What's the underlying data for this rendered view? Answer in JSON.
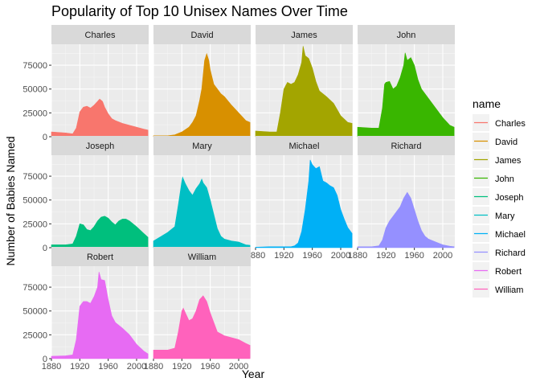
{
  "chart_data": {
    "type": "area",
    "title": "Popularity of Top 10 Unisex Names Over Time",
    "xlabel": "Year",
    "ylabel": "Number of Babies Named",
    "xlim": [
      1880,
      2017
    ],
    "ylim": [
      0,
      97000
    ],
    "x_ticks": [
      1880,
      1920,
      1960,
      2000
    ],
    "x_tick_labels": [
      "1880",
      "1920",
      "1960",
      "2000"
    ],
    "y_ticks": [
      0,
      25000,
      50000,
      75000
    ],
    "y_tick_labels": [
      "0",
      "25000",
      "50000",
      "75000"
    ],
    "grid": true,
    "facet_by": "name",
    "legend": {
      "title": "name",
      "placement": "right"
    },
    "series": [
      {
        "name": "Charles",
        "color": "#F8766D",
        "x": [
          1880,
          1900,
          1910,
          1915,
          1920,
          1925,
          1930,
          1935,
          1940,
          1945,
          1948,
          1952,
          1955,
          1960,
          1965,
          1970,
          1980,
          1990,
          2000,
          2010,
          2016
        ],
        "y": [
          5000,
          4000,
          3000,
          9000,
          26000,
          31000,
          32000,
          30000,
          33000,
          37000,
          39500,
          37000,
          31000,
          24000,
          19000,
          17000,
          14000,
          12000,
          10000,
          8000,
          7000
        ]
      },
      {
        "name": "David",
        "color": "#D89000",
        "x": [
          1880,
          1900,
          1910,
          1920,
          1930,
          1935,
          1940,
          1945,
          1948,
          1952,
          1955,
          1958,
          1960,
          1965,
          1970,
          1975,
          1980,
          1990,
          2000,
          2010,
          2016
        ],
        "y": [
          1000,
          1000,
          2000,
          5000,
          10000,
          15000,
          22000,
          38000,
          50000,
          80000,
          87000,
          80000,
          70000,
          55000,
          50000,
          45000,
          42000,
          33000,
          25000,
          17000,
          15000
        ]
      },
      {
        "name": "James",
        "color": "#A3A500",
        "x": [
          1880,
          1900,
          1910,
          1915,
          1920,
          1925,
          1930,
          1935,
          1940,
          1945,
          1947,
          1950,
          1955,
          1960,
          1965,
          1970,
          1980,
          1990,
          2000,
          2010,
          2016
        ],
        "y": [
          6000,
          5000,
          5000,
          25000,
          50000,
          57000,
          55000,
          57000,
          65000,
          78000,
          95000,
          85000,
          82000,
          72000,
          58000,
          48000,
          42000,
          35000,
          22000,
          15000,
          14000
        ]
      },
      {
        "name": "John",
        "color": "#39B600",
        "x": [
          1880,
          1900,
          1910,
          1915,
          1918,
          1920,
          1925,
          1930,
          1935,
          1940,
          1945,
          1947,
          1950,
          1955,
          1960,
          1965,
          1970,
          1980,
          1990,
          2000,
          2010,
          2016
        ],
        "y": [
          10000,
          9000,
          9000,
          30000,
          55000,
          57000,
          58000,
          50000,
          53000,
          62000,
          75000,
          88000,
          80000,
          83000,
          75000,
          60000,
          50000,
          40000,
          30000,
          20000,
          12000,
          10000
        ]
      },
      {
        "name": "Joseph",
        "color": "#00BF7D",
        "x": [
          1880,
          1900,
          1910,
          1915,
          1920,
          1925,
          1930,
          1935,
          1940,
          1945,
          1950,
          1955,
          1960,
          1965,
          1970,
          1975,
          1980,
          1985,
          1990,
          2000,
          2010,
          2016
        ],
        "y": [
          3000,
          3000,
          4000,
          12000,
          25000,
          24000,
          19000,
          18000,
          22000,
          28000,
          32000,
          33000,
          31000,
          27000,
          24000,
          28000,
          30000,
          30000,
          28000,
          22000,
          15000,
          11000
        ]
      },
      {
        "name": "Mary",
        "color": "#00BFC4",
        "x": [
          1880,
          1900,
          1910,
          1915,
          1920,
          1921,
          1925,
          1930,
          1935,
          1940,
          1945,
          1948,
          1950,
          1955,
          1960,
          1965,
          1970,
          1975,
          1980,
          1990,
          2000,
          2010,
          2016
        ],
        "y": [
          7000,
          16000,
          22000,
          45000,
          70000,
          74000,
          67000,
          60000,
          55000,
          62000,
          67000,
          72000,
          68000,
          63000,
          50000,
          35000,
          20000,
          12000,
          9000,
          7000,
          6000,
          3000,
          2500
        ]
      },
      {
        "name": "Michael",
        "color": "#00B0F6",
        "x": [
          1880,
          1900,
          1920,
          1930,
          1935,
          1940,
          1945,
          1950,
          1955,
          1957,
          1960,
          1965,
          1970,
          1975,
          1980,
          1985,
          1990,
          1995,
          2000,
          2005,
          2010,
          2016
        ],
        "y": [
          500,
          1000,
          1000,
          1000,
          2000,
          5000,
          17000,
          40000,
          70000,
          92000,
          87000,
          83000,
          85000,
          70000,
          68000,
          65000,
          63000,
          55000,
          40000,
          30000,
          21000,
          15000
        ]
      },
      {
        "name": "Richard",
        "color": "#9590FF",
        "x": [
          1880,
          1900,
          1910,
          1915,
          1920,
          1925,
          1930,
          1935,
          1940,
          1945,
          1950,
          1955,
          1960,
          1965,
          1970,
          1975,
          1980,
          1990,
          2000,
          2010,
          2016
        ],
        "y": [
          1000,
          1000,
          2000,
          8000,
          21000,
          28000,
          33000,
          38000,
          43000,
          52000,
          58000,
          52000,
          40000,
          28000,
          18000,
          12000,
          9000,
          6000,
          3000,
          1500,
          1000
        ]
      },
      {
        "name": "Robert",
        "color": "#E76BF3",
        "x": [
          1880,
          1900,
          1910,
          1915,
          1920,
          1925,
          1930,
          1935,
          1940,
          1945,
          1947,
          1950,
          1955,
          1960,
          1965,
          1970,
          1980,
          1990,
          2000,
          2010,
          2016
        ],
        "y": [
          2500,
          3000,
          4000,
          20000,
          55000,
          60000,
          60000,
          58000,
          65000,
          75000,
          91000,
          83000,
          82000,
          62000,
          45000,
          38000,
          32000,
          25000,
          15000,
          8000,
          5000
        ]
      },
      {
        "name": "William",
        "color": "#FF62BC",
        "x": [
          1880,
          1900,
          1910,
          1915,
          1920,
          1922,
          1925,
          1930,
          1935,
          1940,
          1945,
          1950,
          1955,
          1960,
          1965,
          1970,
          1980,
          1990,
          2000,
          2010,
          2016
        ],
        "y": [
          9000,
          9000,
          11000,
          28000,
          50000,
          53000,
          48000,
          40000,
          42000,
          50000,
          62000,
          66000,
          60000,
          48000,
          38000,
          28000,
          24000,
          22000,
          20000,
          16000,
          14000
        ]
      }
    ]
  }
}
